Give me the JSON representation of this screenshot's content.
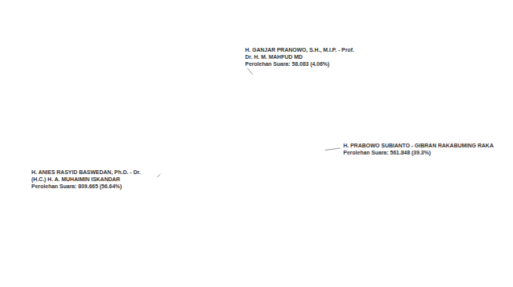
{
  "chart_data": {
    "type": "pie",
    "categories": [
      [
        "H. GANJAR PRANOWO, S.H., M.I.P. - Prof.",
        "Dr. H. M. MAHFUD MD"
      ],
      [
        "H. PRABOWO SUBIANTO - GIBRAN RAKABUMING RAKA"
      ],
      [
        "H. ANIES RASYID BASWEDAN, Ph.D. - Dr.",
        "(H.C.) H. A. MUHAIMIN ISKANDAR"
      ]
    ],
    "values": [
      58083,
      561848,
      809665
    ],
    "value_labels": [
      "Perolehan Suara: 58.083 (4.06%)",
      "Perolehan Suara: 561.848 (39.3%)",
      "Perolehan Suara: 809.665 (56.64%)"
    ],
    "colors": [
      "#c0704f",
      "#c9b9a4",
      "#8fb9be"
    ],
    "data_labels": true
  }
}
